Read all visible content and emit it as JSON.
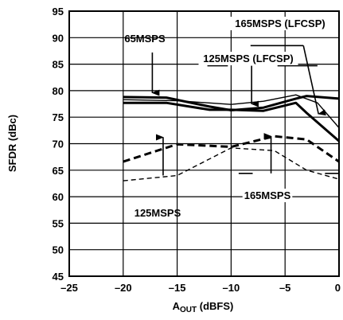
{
  "chart_data": {
    "type": "line",
    "xlabel": "A",
    "xlabel_sub": "OUT",
    "xlabel_suffix": " (dBFS)",
    "ylabel": "SFDR (dBc)",
    "xlim": [
      -25,
      0
    ],
    "ylim": [
      45,
      95
    ],
    "xticks": [
      -25,
      -20,
      -15,
      -10,
      -5,
      0
    ],
    "xtick_labels": [
      "–25",
      "–20",
      "–15",
      "–10",
      "–5",
      "0"
    ],
    "yticks": [
      45,
      50,
      55,
      60,
      65,
      70,
      75,
      80,
      85,
      90,
      95
    ],
    "grid": true,
    "series": [
      {
        "key": "a",
        "style": "thick",
        "x": [
          -20,
          -16,
          -12,
          -10,
          -7,
          -4,
          -3,
          0
        ],
        "y": [
          78.8,
          78.7,
          77.0,
          76.3,
          76.8,
          78.5,
          79.0,
          78.5
        ]
      },
      {
        "key": "b",
        "style": "thick",
        "x": [
          -20,
          -16,
          -12,
          -10,
          -7,
          -4,
          -3,
          0
        ],
        "y": [
          77.7,
          77.7,
          76.4,
          76.4,
          76.2,
          77.7,
          75.8,
          70.5
        ]
      },
      {
        "key": "c",
        "style": "thin",
        "x": [
          -20,
          -15,
          -10,
          -7,
          -4,
          -2,
          0
        ],
        "y": [
          78.3,
          78.1,
          77.4,
          78.0,
          79.2,
          77.7,
          73.0
        ]
      },
      {
        "key": "d",
        "style": "thick-dash",
        "x": [
          -20,
          -15,
          -10,
          -6,
          -3,
          0
        ],
        "y": [
          66.6,
          69.9,
          69.4,
          71.4,
          70.8,
          66.6
        ]
      },
      {
        "key": "e",
        "style": "thin-dash",
        "x": [
          -20,
          -15,
          -10,
          -6,
          -3,
          0
        ],
        "y": [
          63.0,
          64.0,
          69.2,
          68.7,
          65.0,
          63.3
        ]
      }
    ],
    "annotations": [
      {
        "text": "165MSPS (LFCSP)"
      },
      {
        "text": "65MSPS"
      },
      {
        "text": "125MSPS (LFCSP)"
      },
      {
        "text": "125MSPS"
      },
      {
        "text": "165MSPS"
      }
    ]
  }
}
